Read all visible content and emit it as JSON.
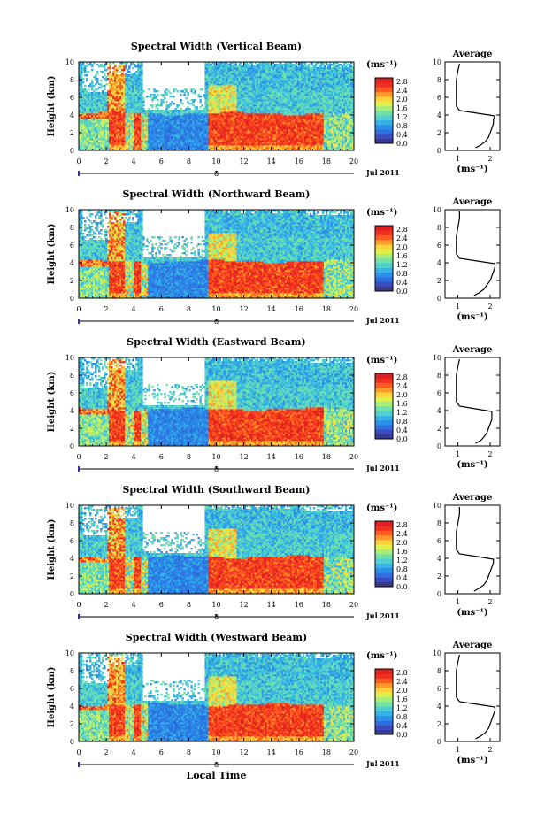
{
  "figure": {
    "xaxis_title": "Local Time",
    "date_label": "Jul 2011",
    "day_marker": "8",
    "colorbar_unit": "(ms⁻¹)",
    "ylabel": "Height (km)",
    "avg_title": "Average",
    "avg_xlabel": "(ms⁻¹)"
  },
  "colors": {
    "scale": [
      "#3a3a8c",
      "#3b4cc0",
      "#2f6fe0",
      "#2a8fe8",
      "#36b2e6",
      "#4fd0d0",
      "#6fe0a8",
      "#a8ec7a",
      "#e0f04a",
      "#ffd23a",
      "#ff9a2a",
      "#ff5a1e",
      "#f03020",
      "#e02020"
    ]
  },
  "chart_data": [
    {
      "type": "heatmap",
      "title": "Spectral Width (Vertical Beam)",
      "xlim": [
        0,
        20
      ],
      "ylim": [
        0,
        10
      ],
      "xticks": [
        "0",
        "2",
        "4",
        "6",
        "8",
        "10",
        "12",
        "14",
        "16",
        "18",
        "20"
      ],
      "yticks": [
        "0",
        "2",
        "4",
        "6",
        "8",
        "10"
      ],
      "colorbar_ticks": [
        "0.0",
        "0.4",
        "0.8",
        "1.2",
        "1.6",
        "2.0",
        "2.4",
        "2.8"
      ],
      "avg_profile": {
        "xlim": [
          0.6,
          2.3
        ],
        "xticks": [
          "1",
          "2"
        ],
        "yticks": [
          "0",
          "2",
          "4",
          "6",
          "8",
          "10"
        ],
        "height": [
          0.3,
          0.6,
          1.0,
          1.5,
          2.0,
          2.5,
          3.0,
          3.5,
          3.9,
          4.2,
          4.5,
          5.0,
          6.0,
          7.0,
          8.0,
          9.0,
          9.8
        ],
        "value": [
          1.55,
          1.7,
          1.85,
          1.95,
          2.0,
          2.05,
          2.1,
          2.1,
          2.15,
          1.6,
          1.05,
          0.95,
          0.95,
          0.95,
          0.95,
          1.0,
          1.05
        ]
      }
    },
    {
      "type": "heatmap",
      "title": "Spectral Width (Northward Beam)",
      "xlim": [
        0,
        20
      ],
      "ylim": [
        0,
        10
      ],
      "xticks": [
        "0",
        "2",
        "4",
        "6",
        "8",
        "10",
        "12",
        "14",
        "16",
        "18",
        "20"
      ],
      "yticks": [
        "0",
        "2",
        "4",
        "6",
        "8",
        "10"
      ],
      "colorbar_ticks": [
        "0.0",
        "0.4",
        "0.8",
        "1.2",
        "1.6",
        "2.0",
        "2.4",
        "2.8"
      ],
      "avg_profile": {
        "xlim": [
          0.6,
          2.3
        ],
        "xticks": [
          "1",
          "2"
        ],
        "yticks": [
          "0",
          "2",
          "4",
          "6",
          "8",
          "10"
        ],
        "height": [
          0.3,
          0.6,
          1.0,
          1.5,
          2.0,
          2.5,
          3.0,
          3.5,
          3.9,
          4.2,
          4.5,
          5.0,
          6.0,
          7.0,
          8.0,
          9.0,
          9.8
        ],
        "value": [
          1.5,
          1.65,
          1.8,
          1.9,
          2.0,
          2.05,
          2.1,
          2.15,
          2.15,
          1.6,
          1.05,
          0.95,
          0.95,
          0.95,
          1.0,
          1.05,
          1.05
        ]
      }
    },
    {
      "type": "heatmap",
      "title": "Spectral Width (Eastward Beam)",
      "xlim": [
        0,
        20
      ],
      "ylim": [
        0,
        10
      ],
      "xticks": [
        "0",
        "2",
        "4",
        "6",
        "8",
        "10",
        "12",
        "14",
        "16",
        "18",
        "20"
      ],
      "yticks": [
        "0",
        "2",
        "4",
        "6",
        "8",
        "10"
      ],
      "colorbar_ticks": [
        "0.0",
        "0.4",
        "0.8",
        "1.2",
        "1.6",
        "2.0",
        "2.4",
        "2.8"
      ],
      "avg_profile": {
        "xlim": [
          0.6,
          2.3
        ],
        "xticks": [
          "1",
          "2"
        ],
        "yticks": [
          "0",
          "2",
          "4",
          "6",
          "8",
          "10"
        ],
        "height": [
          0.3,
          0.6,
          1.0,
          1.5,
          2.0,
          2.5,
          3.0,
          3.5,
          3.9,
          4.2,
          4.5,
          5.0,
          6.0,
          7.0,
          8.0,
          9.0,
          9.8
        ],
        "value": [
          1.55,
          1.7,
          1.8,
          1.9,
          1.95,
          2.0,
          2.05,
          2.05,
          2.05,
          1.55,
          1.05,
          0.95,
          0.95,
          0.95,
          0.95,
          1.0,
          1.05
        ]
      }
    },
    {
      "type": "heatmap",
      "title": "Spectral Width (Southward Beam)",
      "xlim": [
        0,
        20
      ],
      "ylim": [
        0,
        10
      ],
      "xticks": [
        "0",
        "2",
        "4",
        "6",
        "8",
        "10",
        "12",
        "14",
        "16",
        "18",
        "20"
      ],
      "yticks": [
        "0",
        "2",
        "4",
        "6",
        "8",
        "10"
      ],
      "colorbar_ticks": [
        "0.0",
        "0.4",
        "0.8",
        "1.2",
        "1.6",
        "2.0",
        "2.4",
        "2.8"
      ],
      "avg_profile": {
        "xlim": [
          0.6,
          2.3
        ],
        "xticks": [
          "1",
          "2"
        ],
        "yticks": [
          "0",
          "2",
          "4",
          "6",
          "8",
          "10"
        ],
        "height": [
          0.3,
          0.6,
          1.0,
          1.5,
          2.0,
          2.5,
          3.0,
          3.5,
          3.9,
          4.2,
          4.5,
          5.0,
          6.0,
          7.0,
          8.0,
          9.0,
          9.8
        ],
        "value": [
          1.5,
          1.65,
          1.8,
          1.9,
          1.95,
          2.0,
          2.05,
          2.1,
          2.1,
          1.6,
          1.05,
          0.95,
          0.95,
          0.95,
          1.0,
          1.05,
          1.05
        ]
      }
    },
    {
      "type": "heatmap",
      "title": "Spectral Width (Westward Beam)",
      "xlim": [
        0,
        20
      ],
      "ylim": [
        0,
        10
      ],
      "xticks": [
        "0",
        "2",
        "4",
        "6",
        "8",
        "10",
        "12",
        "14",
        "16",
        "18",
        "20"
      ],
      "yticks": [
        "0",
        "2",
        "4",
        "6",
        "8",
        "10"
      ],
      "colorbar_ticks": [
        "0.0",
        "0.4",
        "0.8",
        "1.2",
        "1.6",
        "2.0",
        "2.4",
        "2.8"
      ],
      "avg_profile": {
        "xlim": [
          0.6,
          2.3
        ],
        "xticks": [
          "1",
          "2"
        ],
        "yticks": [
          "0",
          "2",
          "4",
          "6",
          "8",
          "10"
        ],
        "height": [
          0.3,
          0.6,
          1.0,
          1.5,
          2.0,
          2.5,
          3.0,
          3.5,
          3.9,
          4.2,
          4.5,
          5.0,
          6.0,
          7.0,
          8.0,
          9.0,
          9.8
        ],
        "value": [
          1.55,
          1.7,
          1.85,
          1.95,
          2.0,
          2.05,
          2.1,
          2.15,
          2.15,
          1.6,
          1.05,
          0.95,
          0.95,
          0.95,
          0.95,
          1.0,
          1.05
        ]
      }
    }
  ]
}
